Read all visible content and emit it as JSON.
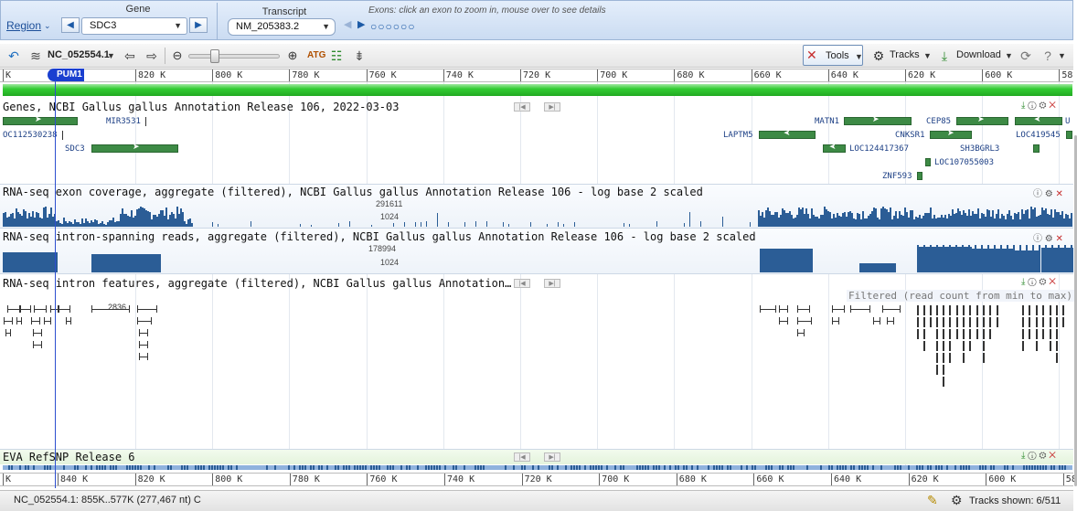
{
  "header": {
    "gene_label": "Gene",
    "region_label": "Region",
    "gene_value": "SDC3",
    "transcript_label": "Transcript",
    "transcript_value": "NM_205383.2",
    "exons_hint": "Exons: click an exon to zoom in, mouse over to see details"
  },
  "toolbar": {
    "sequence": "NC_052554.1",
    "tools_label": "Tools",
    "tracks_label": "Tracks",
    "download_label": "Download"
  },
  "ruler": {
    "labels": [
      "K",
      "820 K",
      "800 K",
      "780 K",
      "760 K",
      "740 K",
      "720 K",
      "700 K",
      "680 K",
      "660 K",
      "640 K",
      "620 K",
      "600 K",
      "58"
    ],
    "marker": "PUM1"
  },
  "bottom_ruler": {
    "labels": [
      "K",
      "840 K",
      "820 K",
      "800 K",
      "780 K",
      "760 K",
      "740 K",
      "720 K",
      "700 K",
      "680 K",
      "660 K",
      "640 K",
      "620 K",
      "600 K",
      "58"
    ]
  },
  "tracks": {
    "genes": {
      "title": "Genes, NCBI Gallus gallus Annotation Release 106, 2022-03-03",
      "labels": [
        "MIR3531",
        "OC112530238",
        "SDC3",
        "MATN1",
        "CEP85",
        "U",
        "LAPTM5",
        "CNKSR1",
        "LOC419545",
        "LOC124417367",
        "SH3BGRL3",
        "LOC107055003",
        "ZNF593"
      ]
    },
    "rnaseq_exon": {
      "title": "RNA-seq exon coverage, aggregate (filtered), NCBI Gallus gallus Annotation Release 106 - log base 2 scaled",
      "max_label": "291611",
      "mid_label": "1024"
    },
    "rnaseq_intron_reads": {
      "title": "RNA-seq intron-spanning reads, aggregate (filtered), NCBI Gallus gallus Annotation Release 106 - log base 2 scaled",
      "max_label": "178994",
      "mid_label": "1024"
    },
    "rnaseq_intron_features": {
      "title": "RNA-seq intron features, aggregate (filtered), NCBI Gallus gallus Annotation…",
      "filter_note": "Filtered (read count from min to max)",
      "count_label": "2836"
    },
    "snp": {
      "title": "EVA RefSNP Release 6"
    }
  },
  "status": {
    "location": "NC_052554.1: 855K..577K (277,467 nt) C",
    "tracks_shown": "Tracks shown: 6/511"
  },
  "colors": {
    "header_bg": "#d8e5f6",
    "gene_green": "#3d8a45",
    "coverage_blue": "#2b5d96",
    "bright_green_band": "#33cc33",
    "marker_blue": "#1a3fd0"
  }
}
